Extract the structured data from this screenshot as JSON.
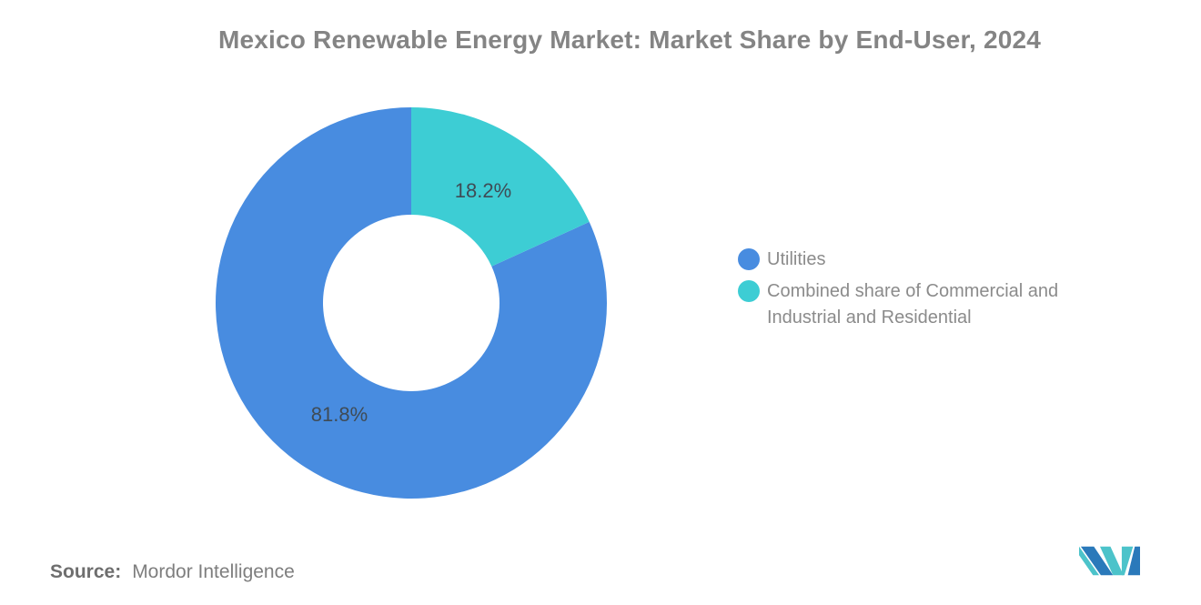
{
  "title": "Mexico Renewable Energy Market: Market Share by End-User, 2024",
  "source": {
    "label": "Source:",
    "value": "Mordor Intelligence"
  },
  "legend": {
    "position": "right",
    "items": [
      {
        "label": "Utilities",
        "color": "#488CE0"
      },
      {
        "label": "Combined share of Commercial and Industrial and Residential",
        "color": "#3DCDD4"
      }
    ]
  },
  "logo": {
    "name": "mordor-intelligence-logo",
    "colors": {
      "blue": "#2A79BA",
      "teal": "#4CC3CA"
    }
  },
  "chart_data": {
    "type": "pie",
    "subtype": "donut",
    "title": "Mexico Renewable Energy Market: Market Share by End-User, 2024",
    "unit": "%",
    "slices": [
      {
        "label": "Utilities",
        "value": 81.8,
        "display": "81.8%",
        "color": "#488CE0"
      },
      {
        "label": "Combined share of Commercial and Industrial and Residential",
        "value": 18.2,
        "display": "18.2%",
        "color": "#3DCDD4"
      }
    ],
    "inner_radius_ratio": 0.45,
    "start_angle": "top",
    "direction": "counterclockwise",
    "data_label_color": "#3F4B55",
    "legend_position": "right",
    "background": "#FFFFFF"
  }
}
